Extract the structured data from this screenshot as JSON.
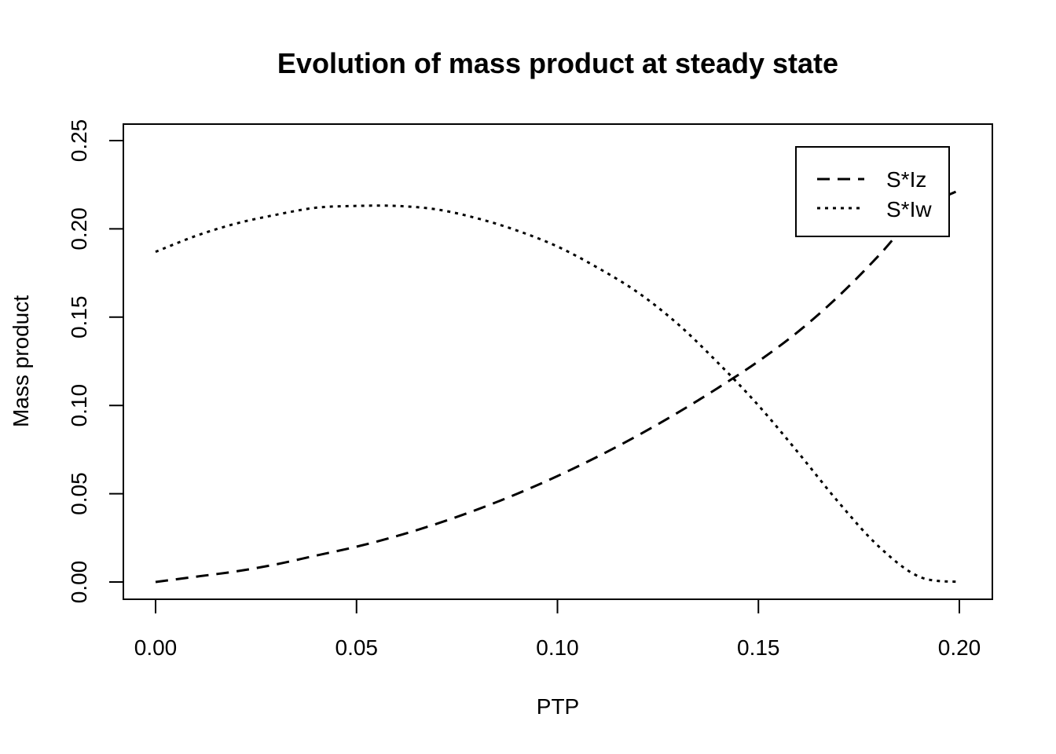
{
  "chart_data": {
    "type": "line",
    "title": "Evolution of mass product at steady state",
    "xlabel": "PTP",
    "ylabel": "Mass product",
    "xlim": [
      0,
      0.2
    ],
    "ylim": [
      0,
      0.25
    ],
    "x_ticks": [
      "0.00",
      "0.05",
      "0.10",
      "0.15",
      "0.20"
    ],
    "y_ticks": [
      "0.00",
      "0.05",
      "0.10",
      "0.15",
      "0.20",
      "0.25"
    ],
    "grid": false,
    "legend_position": "top-right",
    "x": [
      0.0,
      0.01,
      0.02,
      0.03,
      0.04,
      0.05,
      0.06,
      0.07,
      0.08,
      0.09,
      0.1,
      0.11,
      0.12,
      0.13,
      0.14,
      0.15,
      0.16,
      0.17,
      0.18,
      0.19,
      0.2
    ],
    "series": [
      {
        "name": "S*Iz",
        "style": "dashed",
        "color": "#000000",
        "values": [
          0.0,
          0.003,
          0.006,
          0.01,
          0.015,
          0.02,
          0.026,
          0.033,
          0.041,
          0.05,
          0.06,
          0.071,
          0.083,
          0.096,
          0.11,
          0.125,
          0.142,
          0.162,
          0.185,
          0.21,
          0.222
        ]
      },
      {
        "name": "S*Iw",
        "style": "dotted",
        "color": "#000000",
        "values": [
          0.187,
          0.196,
          0.203,
          0.208,
          0.212,
          0.213,
          0.213,
          0.211,
          0.206,
          0.199,
          0.19,
          0.178,
          0.164,
          0.146,
          0.124,
          0.1,
          0.073,
          0.045,
          0.02,
          0.003,
          0.0
        ]
      }
    ]
  }
}
